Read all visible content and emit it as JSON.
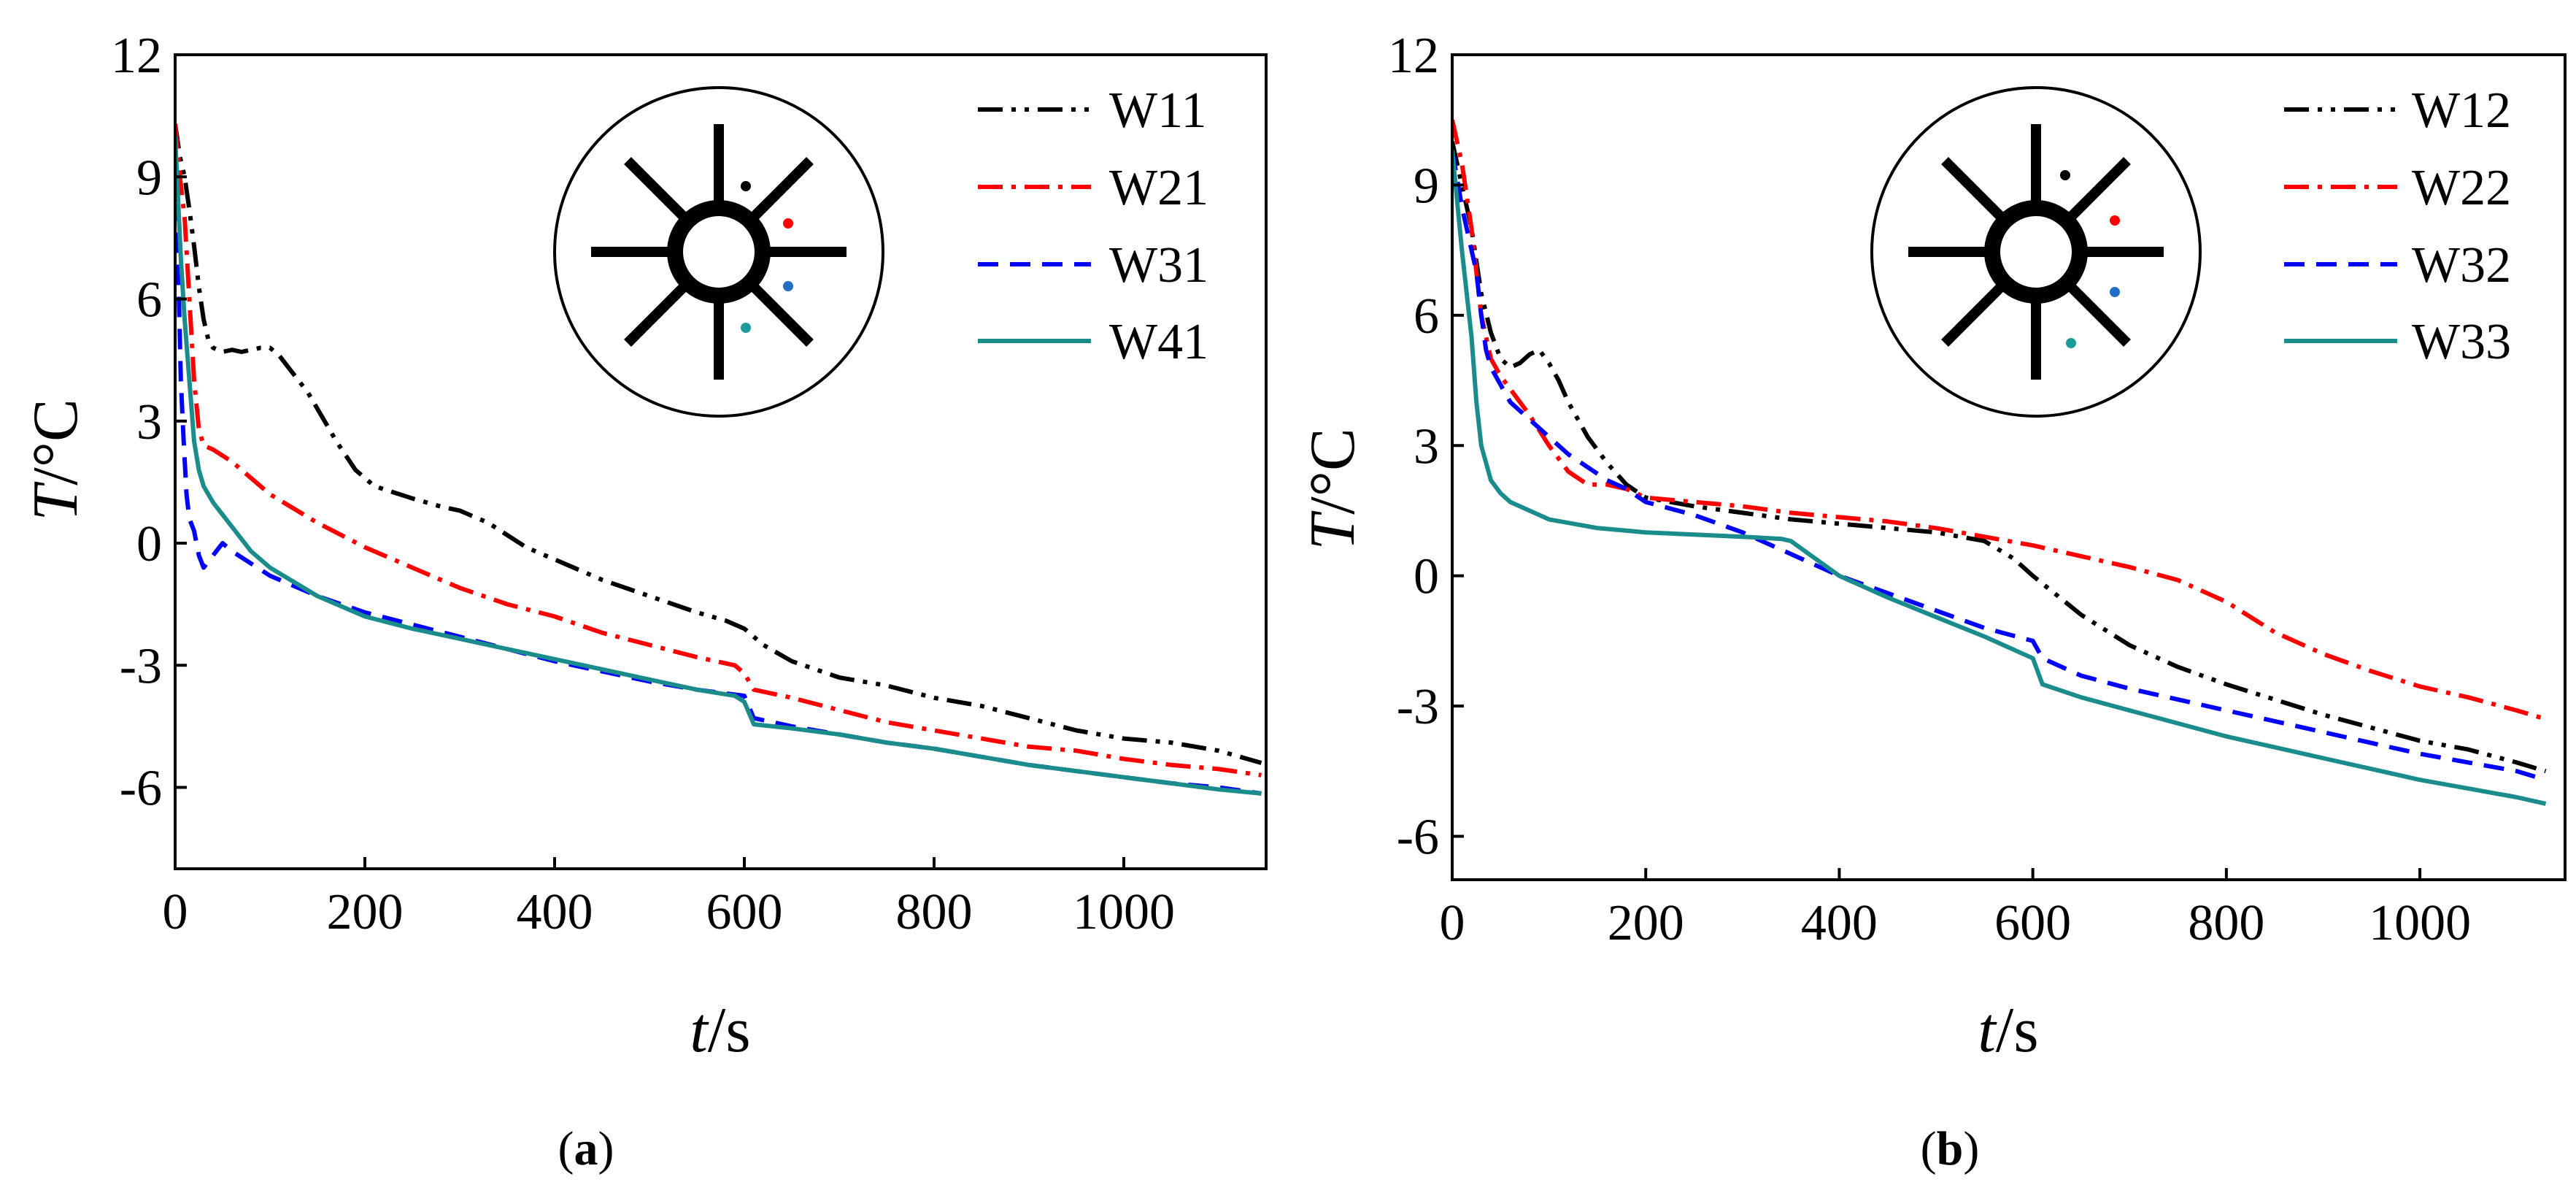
{
  "chart_data": [
    {
      "type": "line",
      "panel_label": "a",
      "xlabel_var": "t",
      "xlabel_unit": "/s",
      "ylabel_var": "T",
      "ylabel_unit": "/°C",
      "xlim": [
        0,
        1150
      ],
      "ylim": [
        -8,
        12
      ],
      "xticks": [
        0,
        200,
        400,
        600,
        800,
        1000
      ],
      "yticks": [
        -6,
        -3,
        0,
        3,
        6,
        9,
        12
      ],
      "legend_position": "top-right",
      "inset": "cross-section: tube with eight fins, four coloured measurement points",
      "series": [
        {
          "name": "W11",
          "color": "#000000",
          "dash": "dashdotdot",
          "x": [
            0,
            5,
            10,
            15,
            20,
            25,
            30,
            35,
            40,
            50,
            60,
            70,
            80,
            90,
            100,
            110,
            120,
            130,
            140,
            150,
            170,
            190,
            210,
            250,
            280,
            300,
            330,
            370,
            400,
            450,
            500,
            550,
            580,
            600,
            620,
            650,
            700,
            750,
            800,
            850,
            900,
            950,
            1000,
            1050,
            1100,
            1145
          ],
          "y": [
            10.3,
            9.5,
            9.0,
            8.2,
            7.3,
            6.3,
            5.5,
            5.0,
            4.8,
            4.7,
            4.75,
            4.7,
            4.75,
            4.8,
            4.8,
            4.6,
            4.3,
            4.0,
            3.7,
            3.3,
            2.5,
            1.8,
            1.4,
            1.1,
            0.9,
            0.8,
            0.5,
            -0.1,
            -0.4,
            -0.9,
            -1.3,
            -1.7,
            -1.9,
            -2.1,
            -2.5,
            -2.9,
            -3.3,
            -3.5,
            -3.8,
            -4.0,
            -4.3,
            -4.6,
            -4.8,
            -4.9,
            -5.1,
            -5.4
          ]
        },
        {
          "name": "W21",
          "color": "#ff0000",
          "dash": "dashdot",
          "x": [
            0,
            5,
            10,
            15,
            20,
            25,
            30,
            40,
            60,
            80,
            100,
            150,
            200,
            250,
            300,
            350,
            400,
            450,
            500,
            550,
            590,
            600,
            610,
            650,
            700,
            750,
            800,
            850,
            900,
            950,
            1000,
            1050,
            1100,
            1145
          ],
          "y": [
            10.3,
            9.0,
            8.0,
            6.0,
            4.0,
            2.8,
            2.4,
            2.3,
            2.0,
            1.6,
            1.2,
            0.5,
            -0.1,
            -0.6,
            -1.1,
            -1.5,
            -1.8,
            -2.2,
            -2.5,
            -2.8,
            -3.0,
            -3.2,
            -3.6,
            -3.8,
            -4.1,
            -4.4,
            -4.6,
            -4.8,
            -5.0,
            -5.1,
            -5.3,
            -5.45,
            -5.55,
            -5.7
          ]
        },
        {
          "name": "W31",
          "color": "#0000ff",
          "dash": "dash",
          "x": [
            0,
            3,
            6,
            9,
            12,
            15,
            20,
            25,
            30,
            40,
            50,
            60,
            80,
            100,
            150,
            200,
            250,
            300,
            350,
            400,
            450,
            500,
            550,
            600,
            610,
            650,
            700,
            750,
            800,
            850,
            900,
            950,
            1000,
            1050,
            1100,
            1145
          ],
          "y": [
            10.0,
            7.0,
            4.0,
            2.5,
            1.2,
            0.6,
            0.3,
            -0.3,
            -0.6,
            -0.3,
            0.0,
            -0.2,
            -0.5,
            -0.8,
            -1.3,
            -1.7,
            -2.0,
            -2.3,
            -2.6,
            -2.9,
            -3.15,
            -3.4,
            -3.6,
            -3.75,
            -4.3,
            -4.5,
            -4.7,
            -4.9,
            -5.05,
            -5.25,
            -5.45,
            -5.6,
            -5.75,
            -5.9,
            -6.0,
            -6.15
          ]
        },
        {
          "name": "W41",
          "color": "#1a8c8c",
          "dash": "solid",
          "x": [
            0,
            3,
            6,
            10,
            15,
            20,
            25,
            30,
            40,
            50,
            60,
            80,
            100,
            150,
            200,
            250,
            300,
            350,
            400,
            450,
            500,
            550,
            590,
            600,
            610,
            650,
            700,
            750,
            800,
            850,
            900,
            950,
            1000,
            1050,
            1100,
            1145
          ],
          "y": [
            10.0,
            8.5,
            7.0,
            5.5,
            4.0,
            2.5,
            1.8,
            1.4,
            1.0,
            0.7,
            0.4,
            -0.2,
            -0.6,
            -1.3,
            -1.8,
            -2.1,
            -2.35,
            -2.6,
            -2.85,
            -3.1,
            -3.35,
            -3.6,
            -3.75,
            -3.9,
            -4.45,
            -4.55,
            -4.7,
            -4.9,
            -5.05,
            -5.25,
            -5.45,
            -5.6,
            -5.75,
            -5.9,
            -6.05,
            -6.15
          ]
        }
      ]
    },
    {
      "type": "line",
      "panel_label": "b",
      "xlabel_var": "t",
      "xlabel_unit": "/s",
      "ylabel_var": "T",
      "ylabel_unit": "/°C",
      "xlim": [
        0,
        1150
      ],
      "ylim": [
        -7,
        12
      ],
      "xticks": [
        0,
        200,
        400,
        600,
        800,
        1000
      ],
      "yticks": [
        -6,
        -3,
        0,
        3,
        6,
        9,
        12
      ],
      "legend_position": "top-right",
      "inset": "cross-section: tube with eight fins, four coloured measurement points",
      "series": [
        {
          "name": "W12",
          "color": "#000000",
          "dash": "dashdotdot",
          "x": [
            0,
            10,
            20,
            30,
            40,
            50,
            60,
            70,
            80,
            90,
            100,
            110,
            120,
            140,
            160,
            180,
            200,
            250,
            300,
            350,
            400,
            450,
            500,
            550,
            580,
            600,
            650,
            700,
            750,
            800,
            850,
            900,
            950,
            1000,
            1050,
            1100,
            1130
          ],
          "y": [
            10.0,
            9.0,
            8.0,
            6.5,
            5.6,
            5.0,
            4.8,
            4.9,
            5.1,
            5.2,
            4.9,
            4.5,
            4.0,
            3.2,
            2.6,
            2.1,
            1.8,
            1.6,
            1.45,
            1.3,
            1.2,
            1.1,
            1.0,
            0.8,
            0.4,
            0.0,
            -0.9,
            -1.6,
            -2.1,
            -2.5,
            -2.85,
            -3.2,
            -3.5,
            -3.8,
            -4.0,
            -4.3,
            -4.5
          ]
        },
        {
          "name": "W22",
          "color": "#ff0000",
          "dash": "dashdot",
          "x": [
            0,
            10,
            20,
            30,
            40,
            50,
            60,
            80,
            100,
            120,
            140,
            160,
            180,
            200,
            250,
            300,
            350,
            400,
            450,
            500,
            550,
            600,
            650,
            700,
            750,
            800,
            850,
            900,
            950,
            1000,
            1050,
            1100,
            1130
          ],
          "y": [
            10.5,
            9.5,
            8.0,
            6.0,
            5.0,
            4.6,
            4.3,
            3.7,
            3.0,
            2.4,
            2.1,
            2.1,
            2.0,
            1.8,
            1.7,
            1.6,
            1.45,
            1.35,
            1.25,
            1.1,
            0.9,
            0.7,
            0.45,
            0.2,
            -0.1,
            -0.6,
            -1.3,
            -1.8,
            -2.2,
            -2.55,
            -2.8,
            -3.1,
            -3.3
          ]
        },
        {
          "name": "W32",
          "color": "#0000ff",
          "dash": "dash",
          "x": [
            0,
            10,
            20,
            25,
            30,
            35,
            40,
            50,
            60,
            80,
            100,
            120,
            140,
            160,
            180,
            200,
            250,
            300,
            350,
            400,
            450,
            500,
            550,
            600,
            610,
            650,
            700,
            750,
            800,
            850,
            900,
            950,
            1000,
            1050,
            1100,
            1130
          ],
          "y": [
            9.8,
            8.5,
            7.5,
            7.0,
            6.0,
            5.2,
            4.8,
            4.4,
            4.0,
            3.6,
            3.2,
            2.8,
            2.5,
            2.2,
            2.0,
            1.7,
            1.4,
            1.0,
            0.5,
            0.0,
            -0.4,
            -0.8,
            -1.2,
            -1.5,
            -1.9,
            -2.3,
            -2.6,
            -2.85,
            -3.1,
            -3.35,
            -3.6,
            -3.85,
            -4.1,
            -4.3,
            -4.5,
            -4.7
          ]
        },
        {
          "name": "W33",
          "color": "#1a8c8c",
          "dash": "solid",
          "x": [
            0,
            10,
            20,
            25,
            30,
            40,
            50,
            60,
            80,
            100,
            150,
            200,
            250,
            300,
            340,
            350,
            400,
            450,
            500,
            550,
            600,
            610,
            650,
            700,
            750,
            800,
            850,
            900,
            950,
            1000,
            1050,
            1100,
            1130
          ],
          "y": [
            9.8,
            7.5,
            5.5,
            4.0,
            3.0,
            2.2,
            1.9,
            1.7,
            1.5,
            1.3,
            1.1,
            1.0,
            0.95,
            0.9,
            0.85,
            0.8,
            0.0,
            -0.5,
            -0.95,
            -1.4,
            -1.9,
            -2.5,
            -2.8,
            -3.1,
            -3.4,
            -3.7,
            -3.95,
            -4.2,
            -4.45,
            -4.7,
            -4.9,
            -5.1,
            -5.25
          ]
        }
      ]
    }
  ]
}
